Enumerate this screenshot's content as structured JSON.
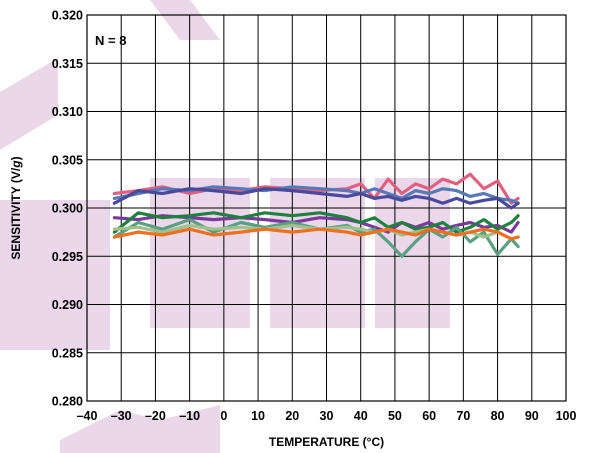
{
  "chart_data": {
    "type": "line",
    "xlabel": "TEMPERATURE (°C)",
    "ylabel_prefix": "SENSITIVITY (V/",
    "ylabel_unit": "g",
    "ylabel_suffix": ")",
    "annotation": "N = 8",
    "xlim": [
      -40,
      100
    ],
    "ylim": [
      0.28,
      0.32
    ],
    "xticks": [
      -40,
      -30,
      -20,
      -10,
      0,
      10,
      20,
      30,
      40,
      50,
      60,
      70,
      80,
      90,
      100
    ],
    "xtick_labels": [
      "–40",
      "–30",
      "–20",
      "–10",
      "0",
      "10",
      "20",
      "30",
      "40",
      "50",
      "60",
      "70",
      "80",
      "90",
      "100"
    ],
    "yticks": [
      0.28,
      0.285,
      0.29,
      0.295,
      0.3,
      0.305,
      0.31,
      0.315,
      0.32
    ],
    "ytick_labels": [
      "0.280",
      "0.285",
      "0.290",
      "0.295",
      "0.300",
      "0.305",
      "0.310",
      "0.315",
      "0.320"
    ],
    "grid": true,
    "series": [
      {
        "color": "#e06080",
        "x": [
          -32,
          -25,
          -18,
          -10,
          -3,
          5,
          12,
          20,
          28,
          36,
          40,
          44,
          48,
          52,
          56,
          60,
          64,
          68,
          72,
          76,
          80,
          84,
          86
        ],
        "y": [
          0.3015,
          0.3018,
          0.3022,
          0.3015,
          0.302,
          0.3018,
          0.3022,
          0.302,
          0.3018,
          0.302,
          0.3025,
          0.301,
          0.303,
          0.3015,
          0.3025,
          0.302,
          0.303,
          0.3025,
          0.3035,
          0.302,
          0.3028,
          0.3005,
          0.301
        ]
      },
      {
        "color": "#5878b8",
        "x": [
          -32,
          -25,
          -18,
          -10,
          -3,
          5,
          12,
          20,
          28,
          36,
          40,
          44,
          48,
          52,
          56,
          60,
          64,
          68,
          72,
          76,
          80,
          84,
          86
        ],
        "y": [
          0.301,
          0.3015,
          0.302,
          0.3018,
          0.3022,
          0.302,
          0.3018,
          0.3022,
          0.302,
          0.3018,
          0.3015,
          0.302,
          0.3015,
          0.301,
          0.3018,
          0.3015,
          0.302,
          0.3018,
          0.3012,
          0.3015,
          0.301,
          0.3008,
          0.3005
        ]
      },
      {
        "color": "#4a4a9c",
        "x": [
          -32,
          -25,
          -18,
          -10,
          -3,
          5,
          12,
          20,
          28,
          36,
          40,
          44,
          48,
          52,
          56,
          60,
          64,
          68,
          72,
          76,
          80,
          84,
          86
        ],
        "y": [
          0.3005,
          0.3018,
          0.3015,
          0.302,
          0.3018,
          0.3015,
          0.302,
          0.3018,
          0.3015,
          0.3012,
          0.3015,
          0.301,
          0.3012,
          0.3008,
          0.3012,
          0.301,
          0.3005,
          0.301,
          0.3005,
          0.3008,
          0.301,
          0.3,
          0.3005
        ]
      },
      {
        "color": "#7a3a9c",
        "x": [
          -32,
          -25,
          -18,
          -10,
          -3,
          5,
          12,
          20,
          28,
          36,
          40,
          44,
          48,
          52,
          56,
          60,
          64,
          68,
          72,
          76,
          80,
          84,
          86
        ],
        "y": [
          0.299,
          0.2988,
          0.2992,
          0.299,
          0.2988,
          0.299,
          0.2988,
          0.2985,
          0.299,
          0.2988,
          0.2985,
          0.298,
          0.2975,
          0.2985,
          0.298,
          0.2985,
          0.2978,
          0.2982,
          0.2985,
          0.298,
          0.2982,
          0.2975,
          0.2985
        ]
      },
      {
        "color": "#208040",
        "x": [
          -32,
          -25,
          -18,
          -10,
          -3,
          5,
          12,
          20,
          28,
          36,
          40,
          44,
          48,
          52,
          56,
          60,
          64,
          68,
          72,
          76,
          80,
          84,
          86
        ],
        "y": [
          0.2975,
          0.2995,
          0.299,
          0.2992,
          0.2995,
          0.299,
          0.2995,
          0.2992,
          0.2995,
          0.299,
          0.2985,
          0.299,
          0.298,
          0.2985,
          0.2978,
          0.298,
          0.2985,
          0.2975,
          0.298,
          0.2988,
          0.2978,
          0.2985,
          0.2992
        ]
      },
      {
        "color": "#5aa080",
        "x": [
          -32,
          -25,
          -18,
          -10,
          -3,
          5,
          12,
          20,
          28,
          36,
          40,
          44,
          48,
          52,
          56,
          60,
          64,
          68,
          72,
          76,
          80,
          84,
          86
        ],
        "y": [
          0.297,
          0.2985,
          0.2978,
          0.2988,
          0.2975,
          0.2985,
          0.298,
          0.2985,
          0.2978,
          0.2982,
          0.2975,
          0.2978,
          0.2965,
          0.295,
          0.2965,
          0.2978,
          0.297,
          0.298,
          0.2965,
          0.2975,
          0.2952,
          0.2968,
          0.296
        ]
      },
      {
        "color": "#a0c090",
        "x": [
          -32,
          -25,
          -18,
          -10,
          -3,
          5,
          12,
          20,
          28,
          36,
          40,
          44,
          48,
          52,
          56,
          60,
          64,
          68,
          72,
          76,
          80,
          84,
          86
        ],
        "y": [
          0.2978,
          0.298,
          0.2975,
          0.2982,
          0.2978,
          0.298,
          0.2978,
          0.2982,
          0.2978,
          0.298,
          0.2978,
          0.2975,
          0.2978,
          0.2972,
          0.2975,
          0.2978,
          0.2975,
          0.2972,
          0.2975,
          0.297,
          0.2975,
          0.2968,
          0.297
        ]
      },
      {
        "color": "#f07020",
        "x": [
          -32,
          -25,
          -18,
          -10,
          -3,
          5,
          12,
          20,
          28,
          36,
          40,
          44,
          48,
          52,
          56,
          60,
          64,
          68,
          72,
          76,
          80,
          84,
          86
        ],
        "y": [
          0.297,
          0.2975,
          0.2972,
          0.2978,
          0.2972,
          0.2975,
          0.2978,
          0.2975,
          0.2978,
          0.2975,
          0.2972,
          0.2975,
          0.2978,
          0.2975,
          0.2972,
          0.2978,
          0.2975,
          0.2972,
          0.2975,
          0.2978,
          0.2975,
          0.2968,
          0.297
        ]
      }
    ]
  }
}
